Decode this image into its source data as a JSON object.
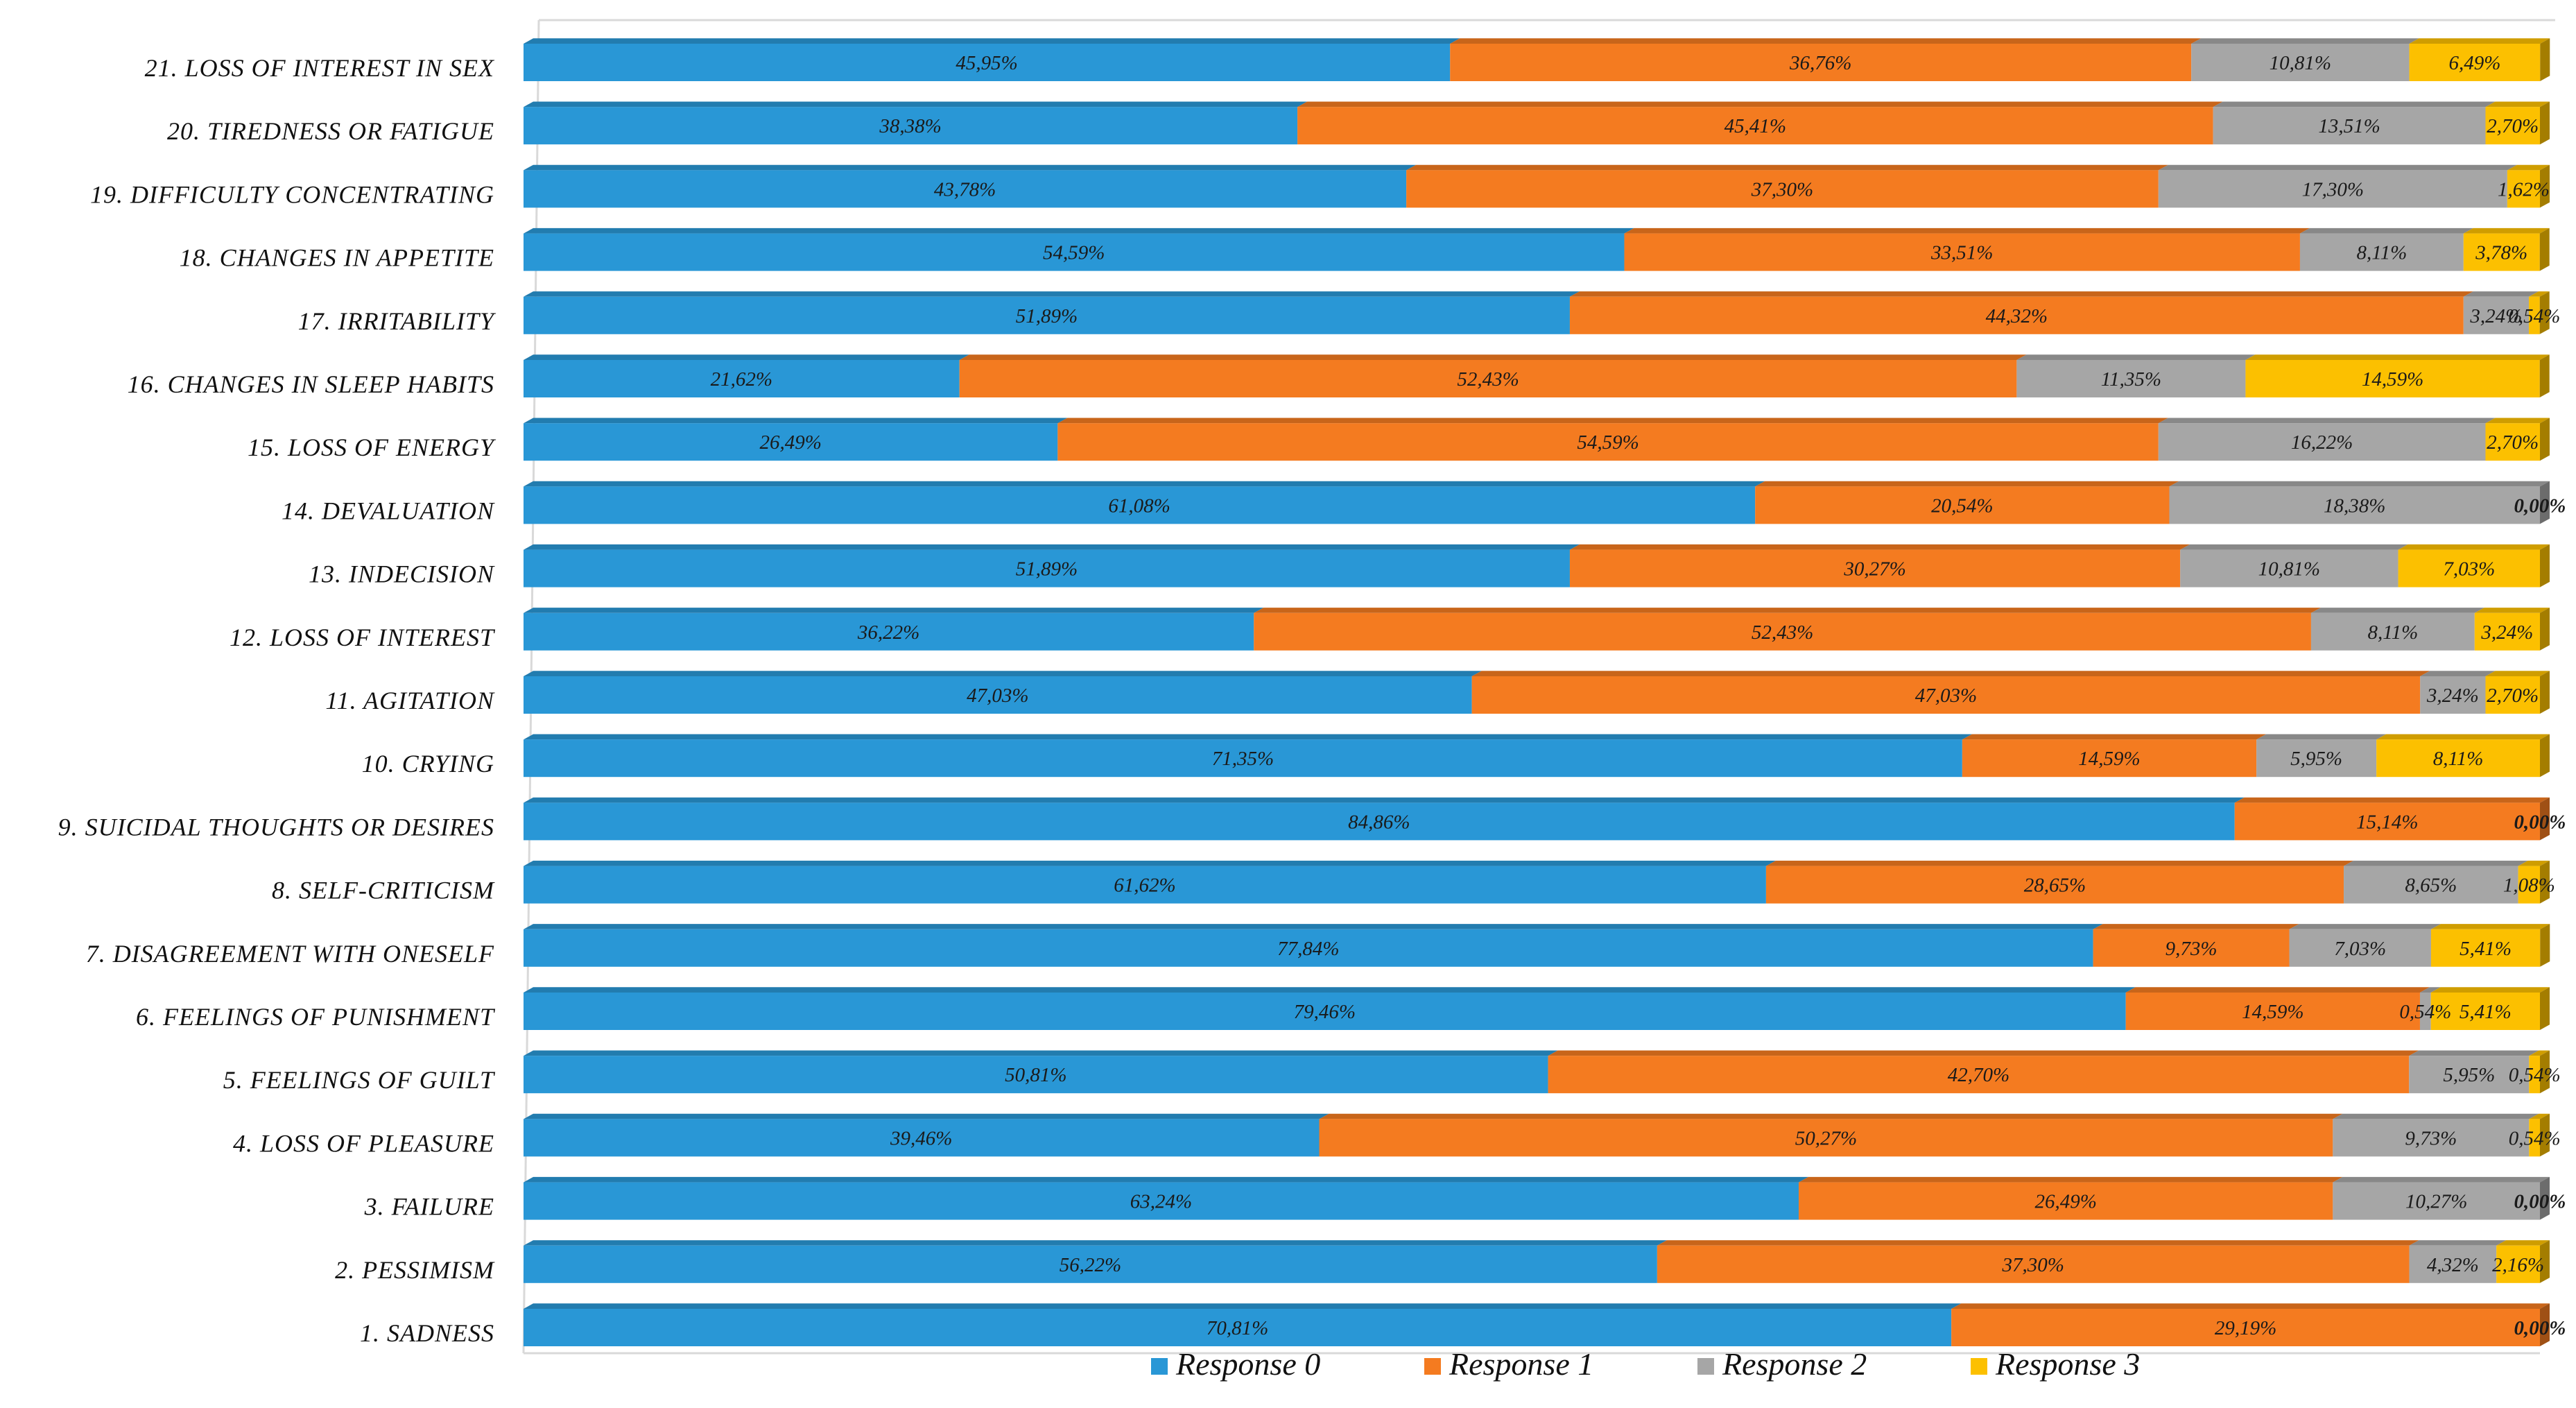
{
  "chart_data": {
    "type": "bar",
    "orientation": "horizontal",
    "stacked": "100%",
    "title": "",
    "xlabel": "",
    "ylabel": "",
    "xlim": [
      0,
      100
    ],
    "legend_position": "bottom",
    "categories": [
      "21. LOSS OF INTEREST IN SEX",
      "20. TIREDNESS OR FATIGUE",
      "19. DIFFICULTY CONCENTRATING",
      "18. CHANGES IN APPETITE",
      "17. IRRITABILITY",
      "16. CHANGES IN SLEEP HABITS",
      "15. LOSS OF ENERGY",
      "14. DEVALUATION",
      "13. INDECISION",
      "12. LOSS OF INTEREST",
      "11. AGITATION",
      "10. CRYING",
      "9. SUICIDAL THOUGHTS OR DESIRES",
      "8. SELF-CRITICISM",
      "7. DISAGREEMENT WITH ONESELF",
      "6. FEELINGS OF PUNISHMENT",
      "5. FEELINGS OF GUILT",
      "4. LOSS OF PLEASURE",
      "3. FAILURE",
      "2. PESSIMISM",
      "1. SADNESS"
    ],
    "series": [
      {
        "name": "Response 0",
        "color": "#2997d6",
        "values": [
          45.95,
          38.38,
          43.78,
          54.59,
          51.89,
          21.62,
          26.49,
          61.08,
          51.89,
          36.22,
          47.03,
          71.35,
          84.86,
          61.62,
          77.84,
          79.46,
          50.81,
          39.46,
          63.24,
          56.22,
          70.81
        ],
        "labels": [
          "45,95%",
          "38,38%",
          "43,78%",
          "54,59%",
          "51,89%",
          "21,62%",
          "26,49%",
          "61,08%",
          "51,89%",
          "36,22%",
          "47,03%",
          "71,35%",
          "84,86%",
          "61,62%",
          "77,84%",
          "79,46%",
          "50,81%",
          "39,46%",
          "63,24%",
          "56,22%",
          "70,81%"
        ]
      },
      {
        "name": "Response 1",
        "color": "#f47b20",
        "values": [
          36.76,
          45.41,
          37.3,
          33.51,
          44.32,
          52.43,
          54.59,
          20.54,
          30.27,
          52.43,
          47.03,
          14.59,
          15.14,
          28.65,
          9.73,
          14.59,
          42.7,
          50.27,
          26.49,
          37.3,
          29.19
        ],
        "labels": [
          "36,76%",
          "45,41%",
          "37,30%",
          "33,51%",
          "44,32%",
          "52,43%",
          "54,59%",
          "20,54%",
          "30,27%",
          "52,43%",
          "47,03%",
          "14,59%",
          "15,14%",
          "28,65%",
          "9,73%",
          "14,59%",
          "42,70%",
          "50,27%",
          "26,49%",
          "37,30%",
          "29,19%"
        ]
      },
      {
        "name": "Response 2",
        "color": "#a6a6a6",
        "values": [
          10.81,
          13.51,
          17.3,
          8.11,
          3.24,
          11.35,
          16.22,
          18.38,
          10.81,
          8.11,
          3.24,
          5.95,
          0.0,
          8.65,
          7.03,
          0.54,
          5.95,
          9.73,
          10.27,
          4.32,
          0.0
        ],
        "labels": [
          "10,81%",
          "13,51%",
          "17,30%",
          "8,11%",
          "3,24%",
          "11,35%",
          "16,22%",
          "18,38%",
          "10,81%",
          "8,11%",
          "3,24%",
          "5,95%",
          "",
          "8,65%",
          "7,03%",
          "0,54%",
          "5,95%",
          "9,73%",
          "10,27%",
          "4,32%",
          ""
        ]
      },
      {
        "name": "Response 3",
        "color": "#fcc000",
        "values": [
          6.49,
          2.7,
          1.62,
          3.78,
          0.54,
          14.59,
          2.7,
          0.0,
          7.03,
          3.24,
          2.7,
          8.11,
          0.0,
          1.08,
          5.41,
          5.41,
          0.54,
          0.54,
          0.0,
          2.16,
          0.0
        ],
        "labels": [
          "6,49%",
          "2,70%",
          "1,62%",
          "3,78%",
          "0,54%",
          "14,59%",
          "2,70%",
          "0,00%",
          "7,03%",
          "3,24%",
          "2,70%",
          "8,11%",
          "0,00%",
          "1,08%",
          "5,41%",
          "5,41%",
          "0,54%",
          "0,54%",
          "0,00%",
          "2,16%",
          "0,00%"
        ]
      }
    ]
  }
}
